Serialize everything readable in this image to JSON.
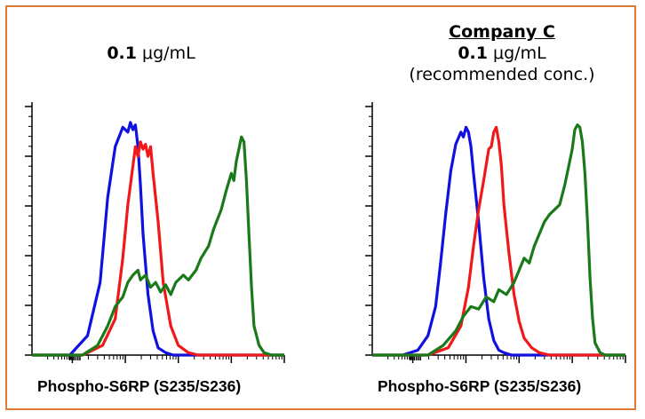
{
  "figure": {
    "border_color": "#e07a37"
  },
  "left_panel": {
    "conc_value": "0.1",
    "conc_unit": " μg/mL",
    "xlabel": "Phospho-S6RP (S235/S236)"
  },
  "right_panel": {
    "company": "Company C",
    "conc_value": "0.1",
    "conc_unit": " μg/mL",
    "note": "(recommended conc.)",
    "xlabel": "Phospho-S6RP (S235/S236)"
  },
  "chart_data": [
    {
      "type": "line",
      "title": "0.1 μg/mL",
      "xlabel": "Phospho-S6RP (S235/S236)",
      "ylabel": "",
      "xlim": [
        0,
        1
      ],
      "ylim": [
        0,
        1
      ],
      "x_scale": "log (fluorescence intensity, tick labels not printed)",
      "series": [
        {
          "color": "#1010e0",
          "x": [
            0.0,
            0.15,
            0.22,
            0.27,
            0.3,
            0.33,
            0.36,
            0.38,
            0.39,
            0.4,
            0.41,
            0.42,
            0.43,
            0.44,
            0.46,
            0.48,
            0.5,
            0.53,
            0.56,
            1.0
          ],
          "y": [
            0.0,
            0.0,
            0.08,
            0.3,
            0.65,
            0.86,
            0.94,
            0.92,
            0.96,
            0.93,
            0.95,
            0.86,
            0.7,
            0.5,
            0.25,
            0.1,
            0.03,
            0.01,
            0.0,
            0.0
          ]
        },
        {
          "color": "#f01818",
          "x": [
            0.0,
            0.2,
            0.28,
            0.33,
            0.36,
            0.38,
            0.4,
            0.41,
            0.42,
            0.43,
            0.44,
            0.45,
            0.46,
            0.47,
            0.48,
            0.5,
            0.52,
            0.55,
            0.58,
            0.62,
            0.66,
            1.0
          ],
          "y": [
            0.0,
            0.0,
            0.04,
            0.15,
            0.4,
            0.62,
            0.78,
            0.86,
            0.82,
            0.88,
            0.85,
            0.87,
            0.82,
            0.86,
            0.75,
            0.55,
            0.3,
            0.12,
            0.04,
            0.01,
            0.0,
            0.0
          ]
        },
        {
          "color": "#1a7a1a",
          "x": [
            0.0,
            0.2,
            0.26,
            0.3,
            0.33,
            0.36,
            0.38,
            0.4,
            0.42,
            0.43,
            0.45,
            0.47,
            0.49,
            0.51,
            0.53,
            0.55,
            0.57,
            0.6,
            0.62,
            0.65,
            0.67,
            0.7,
            0.72,
            0.75,
            0.77,
            0.79,
            0.8,
            0.81,
            0.82,
            0.83,
            0.84,
            0.85,
            0.86,
            0.87,
            0.88,
            0.9,
            0.92,
            0.95,
            1.0
          ],
          "y": [
            0.0,
            0.0,
            0.04,
            0.12,
            0.2,
            0.24,
            0.3,
            0.33,
            0.35,
            0.31,
            0.33,
            0.28,
            0.3,
            0.26,
            0.29,
            0.25,
            0.3,
            0.33,
            0.31,
            0.35,
            0.4,
            0.45,
            0.52,
            0.6,
            0.68,
            0.75,
            0.72,
            0.8,
            0.85,
            0.9,
            0.88,
            0.72,
            0.5,
            0.28,
            0.12,
            0.04,
            0.01,
            0.0,
            0.0
          ]
        }
      ]
    },
    {
      "type": "line",
      "title": "Company C 0.1 μg/mL (recommended conc.)",
      "xlabel": "Phospho-S6RP (S235/S236)",
      "ylabel": "",
      "xlim": [
        0,
        1
      ],
      "ylim": [
        0,
        1
      ],
      "x_scale": "log (fluorescence intensity, tick labels not printed)",
      "series": [
        {
          "color": "#1010e0",
          "x": [
            0.0,
            0.12,
            0.18,
            0.22,
            0.25,
            0.27,
            0.29,
            0.31,
            0.33,
            0.35,
            0.36,
            0.37,
            0.38,
            0.39,
            0.4,
            0.42,
            0.44,
            0.46,
            0.48,
            0.5,
            0.52,
            0.55,
            1.0
          ],
          "y": [
            0.0,
            0.0,
            0.02,
            0.08,
            0.2,
            0.38,
            0.58,
            0.76,
            0.87,
            0.92,
            0.9,
            0.94,
            0.92,
            0.86,
            0.75,
            0.55,
            0.32,
            0.15,
            0.06,
            0.02,
            0.01,
            0.0,
            0.0
          ]
        },
        {
          "color": "#f01818",
          "x": [
            0.0,
            0.22,
            0.3,
            0.35,
            0.38,
            0.4,
            0.42,
            0.44,
            0.46,
            0.47,
            0.48,
            0.49,
            0.5,
            0.51,
            0.52,
            0.54,
            0.56,
            0.58,
            0.6,
            0.63,
            0.66,
            0.7,
            0.75,
            1.0
          ],
          "y": [
            0.0,
            0.0,
            0.03,
            0.12,
            0.28,
            0.45,
            0.6,
            0.72,
            0.85,
            0.86,
            0.92,
            0.94,
            0.88,
            0.78,
            0.62,
            0.42,
            0.25,
            0.14,
            0.07,
            0.03,
            0.01,
            0.0,
            0.0,
            0.0
          ]
        },
        {
          "color": "#1a7a1a",
          "x": [
            0.0,
            0.22,
            0.28,
            0.33,
            0.36,
            0.39,
            0.42,
            0.45,
            0.48,
            0.5,
            0.53,
            0.56,
            0.58,
            0.6,
            0.62,
            0.64,
            0.66,
            0.68,
            0.7,
            0.72,
            0.74,
            0.76,
            0.78,
            0.79,
            0.8,
            0.81,
            0.82,
            0.83,
            0.84,
            0.85,
            0.86,
            0.87,
            0.88,
            0.9,
            0.92,
            0.95,
            1.0
          ],
          "y": [
            0.0,
            0.0,
            0.04,
            0.1,
            0.16,
            0.2,
            0.19,
            0.24,
            0.22,
            0.27,
            0.25,
            0.3,
            0.35,
            0.4,
            0.38,
            0.45,
            0.5,
            0.55,
            0.58,
            0.6,
            0.62,
            0.7,
            0.8,
            0.85,
            0.93,
            0.95,
            0.94,
            0.88,
            0.75,
            0.55,
            0.32,
            0.15,
            0.05,
            0.01,
            0.0,
            0.0,
            0.0
          ]
        }
      ]
    }
  ]
}
